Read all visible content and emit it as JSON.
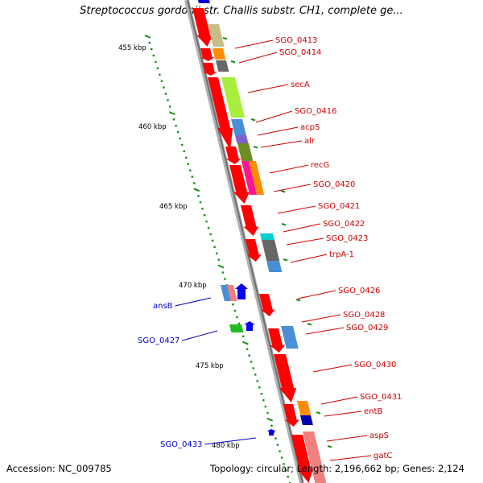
{
  "title": "Streptococcus gordonii str. Challis substr. CH1, complete ge...",
  "footer": {
    "accession": "Accession: NC_009785",
    "topology": "Topology: circular; Length: 2,196,662 bp; Genes: 2,124"
  },
  "colors": {
    "label_red": "#cc0000",
    "label_blue": "#0000cc",
    "tick_green": "#1a8c1a",
    "backbone": "#8a8a8a",
    "gene_red": "#ff0000"
  },
  "scale_labels": [
    "455 kbp",
    "460 kbp",
    "465 kbp",
    "470 kbp",
    "475 kbp",
    "480 kbp"
  ],
  "genes_right": [
    "SGO_0413",
    "SGO_0414",
    "secA",
    "SGO_0416",
    "acpS",
    "alr",
    "recG",
    "SGO_0420",
    "SGO_0421",
    "SGO_0422",
    "SGO_0423",
    "trpA-1",
    "SGO_0426",
    "SGO_0428",
    "SGO_0429",
    "SGO_0430",
    "SGO_0431",
    "entB",
    "aspS",
    "gatC"
  ],
  "genes_left": [
    "ansB",
    "SGO_0427",
    "SGO_0433"
  ]
}
